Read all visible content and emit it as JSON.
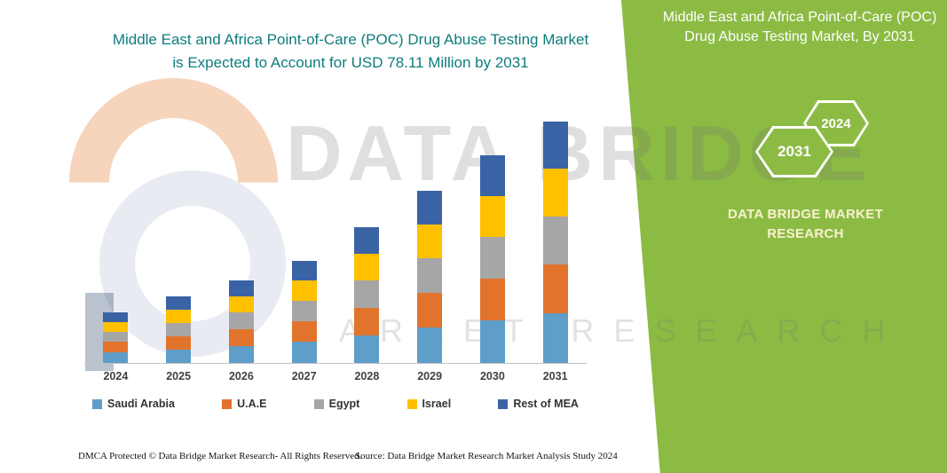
{
  "main": {
    "title_line1": "Middle East and Africa Point-of-Care (POC) Drug Abuse Testing Market",
    "title_line2": "is Expected to Account for USD 78.11 Million by 2031",
    "title_color": "#0E7C7E"
  },
  "watermark": {
    "line1": "DATA BRIDGE",
    "line2": "MARKET RESEARCH"
  },
  "side_panel": {
    "title": "Middle East and Africa Point-of-Care (POC) Drug Abuse Testing Market, By 2031",
    "hexagon_back_label": "2024",
    "hexagon_front_label": "2031",
    "brand_line1": "DATA BRIDGE MARKET",
    "brand_line2": "RESEARCH",
    "background_color": "#8CBB44"
  },
  "chart_data": {
    "type": "bar",
    "stacked": true,
    "title": "Middle East and Africa Point-of-Care (POC) Drug Abuse Testing Market is Expected to Account for USD 78.11 Million by 2031",
    "highlight_value": "USD 78.11 Million by 2031",
    "categories": [
      "2024",
      "2025",
      "2026",
      "2027",
      "2028",
      "2029",
      "2030",
      "2031"
    ],
    "series": [
      {
        "name": "Saudi Arabia",
        "color": "#5F9EC9",
        "values": [
          3.4,
          4.4,
          5.6,
          6.8,
          9.0,
          11.5,
          13.7,
          16.0
        ]
      },
      {
        "name": "U.A.E",
        "color": "#E2732C",
        "values": [
          3.4,
          4.4,
          5.5,
          6.7,
          8.9,
          11.3,
          13.5,
          15.8
        ]
      },
      {
        "name": "Egypt",
        "color": "#A6A6A6",
        "values": [
          3.3,
          4.3,
          5.4,
          6.6,
          8.8,
          11.2,
          13.4,
          15.6
        ]
      },
      {
        "name": "Israel",
        "color": "#FFC000",
        "values": [
          3.2,
          4.2,
          5.3,
          6.5,
          8.7,
          11.0,
          13.2,
          15.4
        ]
      },
      {
        "name": "Rest of MEA",
        "color": "#3A63A5",
        "values": [
          3.2,
          4.2,
          5.2,
          6.4,
          8.6,
          11.0,
          13.2,
          15.31
        ]
      }
    ],
    "totals": [
      16.5,
      21.5,
      27.0,
      33.0,
      44.0,
      56.0,
      67.0,
      78.11
    ],
    "value_unit": "USD Million",
    "ylim": [
      0,
      80
    ],
    "grid": false,
    "y_axis_labels_shown": false,
    "legend_position": "bottom",
    "note": "Only the 2031 total (USD 78.11 Million) is labeled on the image; series values are estimated from bar heights."
  },
  "footer": {
    "left": "DMCA Protected © Data Bridge Market Research-  All Rights Reserved.",
    "right": "Source: Data Bridge Market Research  Market Analysis Study 2024"
  }
}
